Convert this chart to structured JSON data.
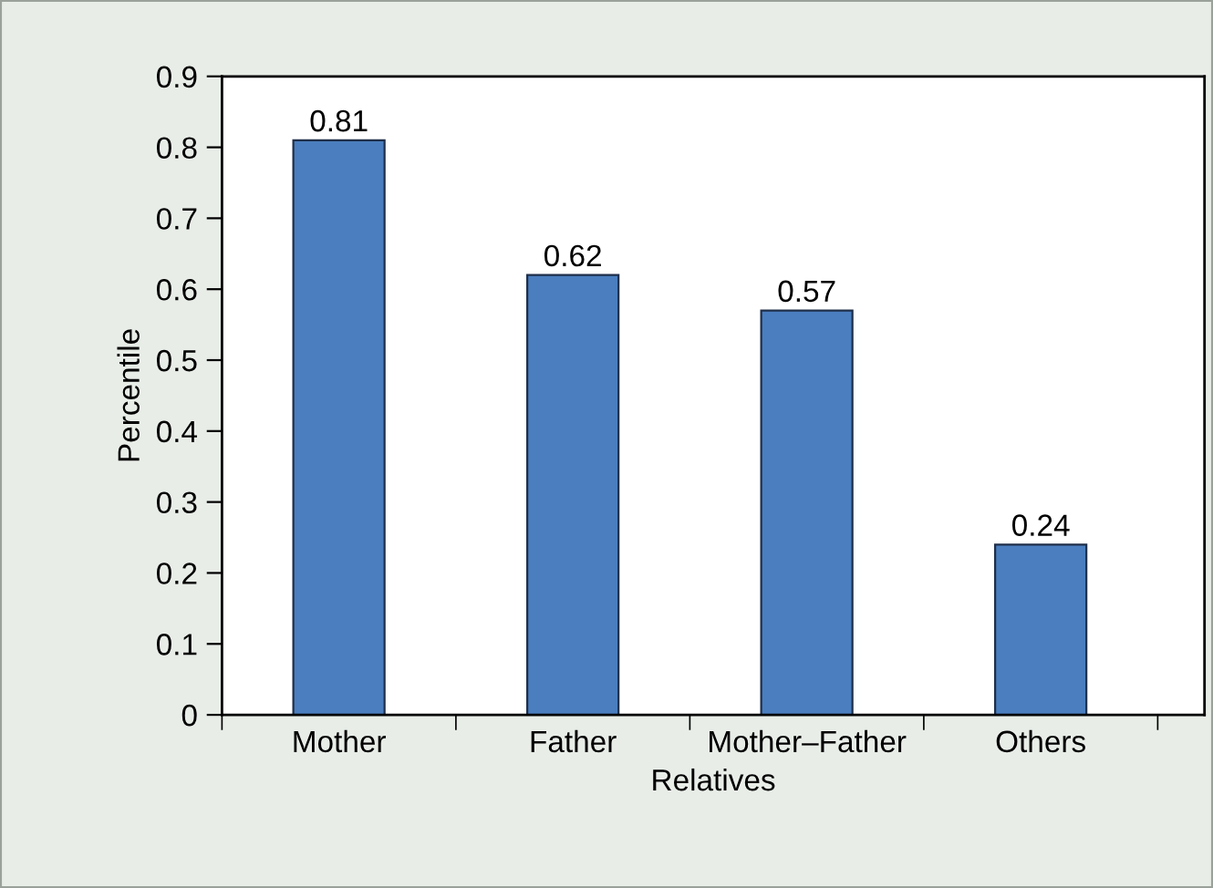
{
  "chart_data": {
    "type": "bar",
    "xlabel": "Relatives",
    "ylabel": "Percentile",
    "categories": [
      "Mother",
      "Father",
      "Mother–Father",
      "Others"
    ],
    "values": [
      0.81,
      0.62,
      0.57,
      0.24
    ],
    "color": "#4a7ebf",
    "ylim": [
      0,
      0.9
    ],
    "yticks": [
      0,
      0.1,
      0.2,
      0.3,
      0.4,
      0.5,
      0.6,
      0.7,
      0.8,
      0.9
    ],
    "data_labels": true,
    "grid": false
  }
}
